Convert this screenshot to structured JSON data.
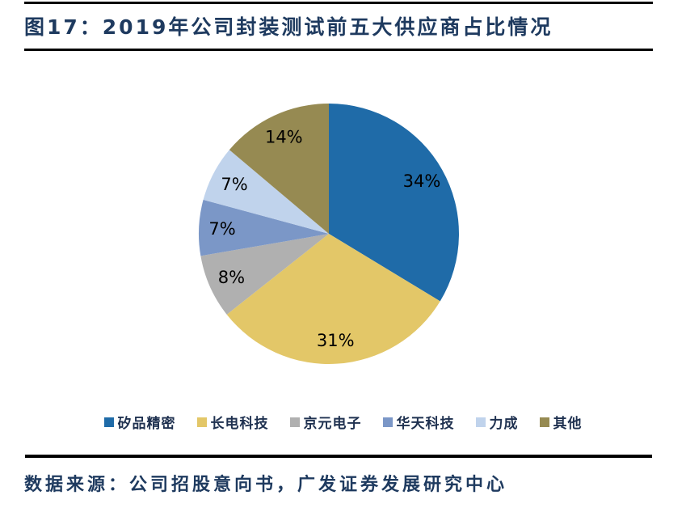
{
  "figure": {
    "title": "图17：2019年公司封装测试前五大供应商占比情况",
    "source": "数据来源：公司招股意向书，广发证券发展研究中心"
  },
  "chart_data": {
    "type": "pie",
    "title": "2019年公司封装测试前五大供应商占比情况",
    "categories": [
      "矽品精密",
      "长电科技",
      "京元电子",
      "华天科技",
      "力成",
      "其他"
    ],
    "values": [
      34,
      31,
      8,
      7,
      7,
      14
    ],
    "unit": "%",
    "labels": [
      "34%",
      "31%",
      "8%",
      "7%",
      "7%",
      "14%"
    ],
    "colors": [
      "#1F6BA8",
      "#E3C768",
      "#B0B0B0",
      "#7B97C7",
      "#C0D3EC",
      "#968A52"
    ],
    "start_angle_deg": 0,
    "direction": "clockwise",
    "label_color": "#000000",
    "legend_position": "bottom",
    "grid": false
  }
}
